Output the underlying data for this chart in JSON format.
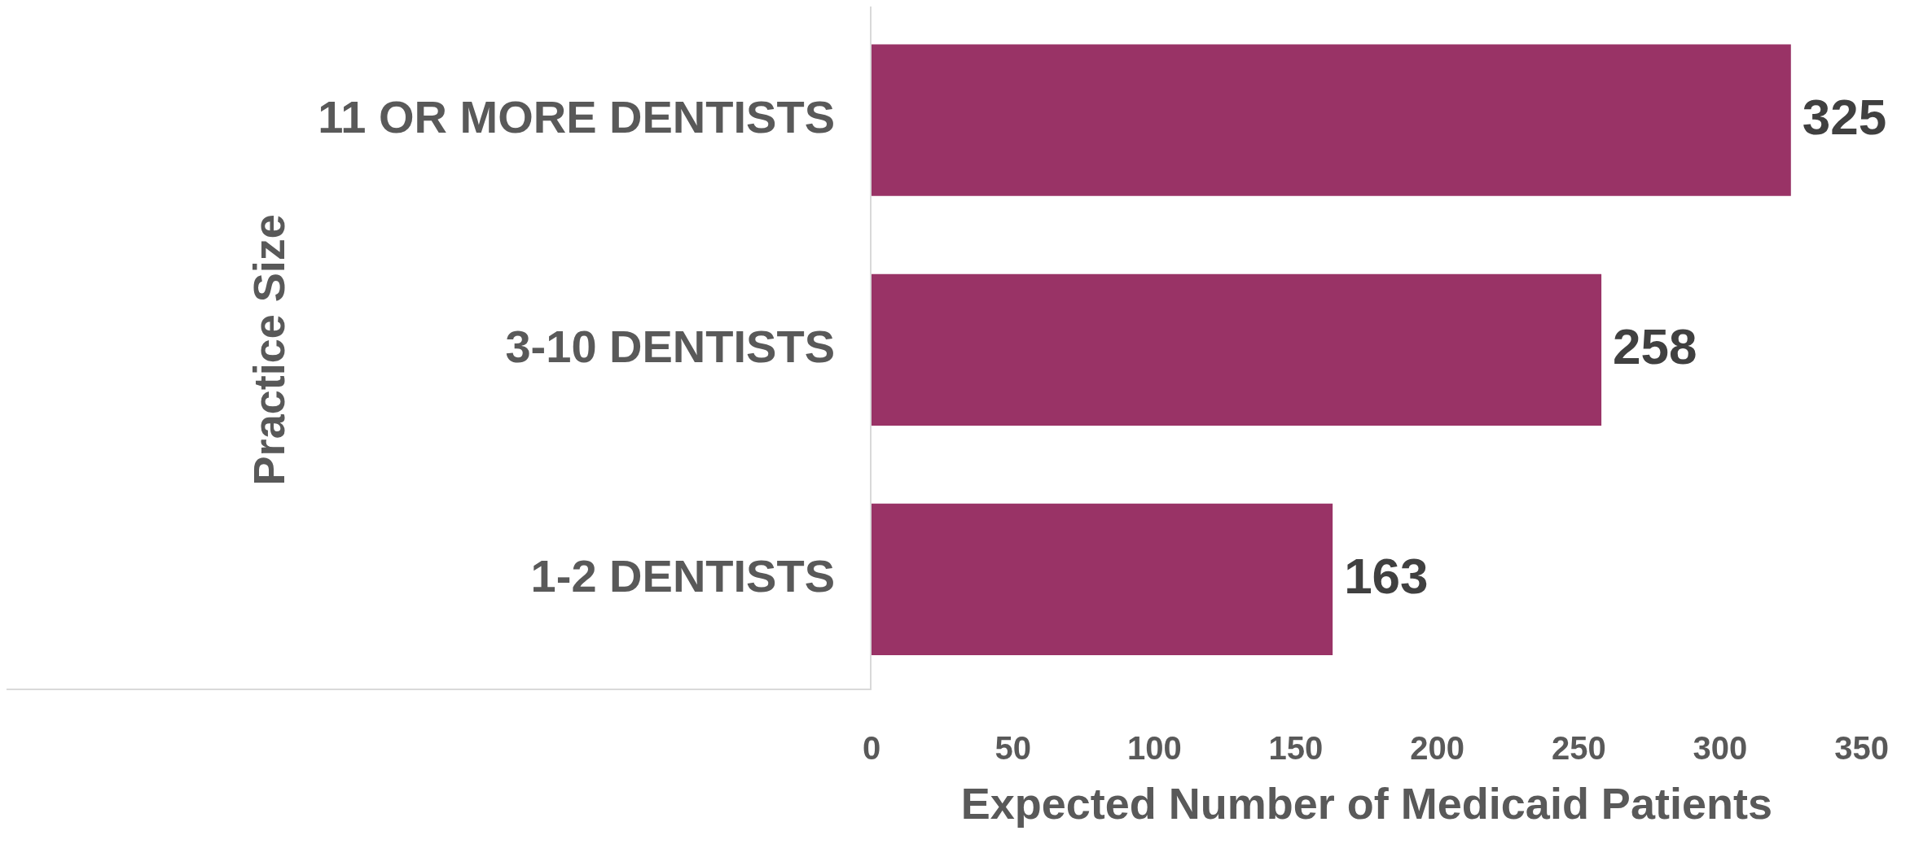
{
  "chart_data": {
    "type": "bar",
    "orientation": "horizontal",
    "categories": [
      "11 OR MORE DENTISTS",
      "3-10 DENTISTS",
      "1-2 DENTISTS"
    ],
    "values": [
      325,
      258,
      163
    ],
    "color": "#993366",
    "xlim": [
      0,
      350
    ],
    "xticks": [
      0,
      50,
      100,
      150,
      200,
      250,
      300,
      350
    ],
    "xlabel": "Expected Number of Medicaid Patients",
    "ylabel": "Practice Size",
    "data_labels": true
  }
}
